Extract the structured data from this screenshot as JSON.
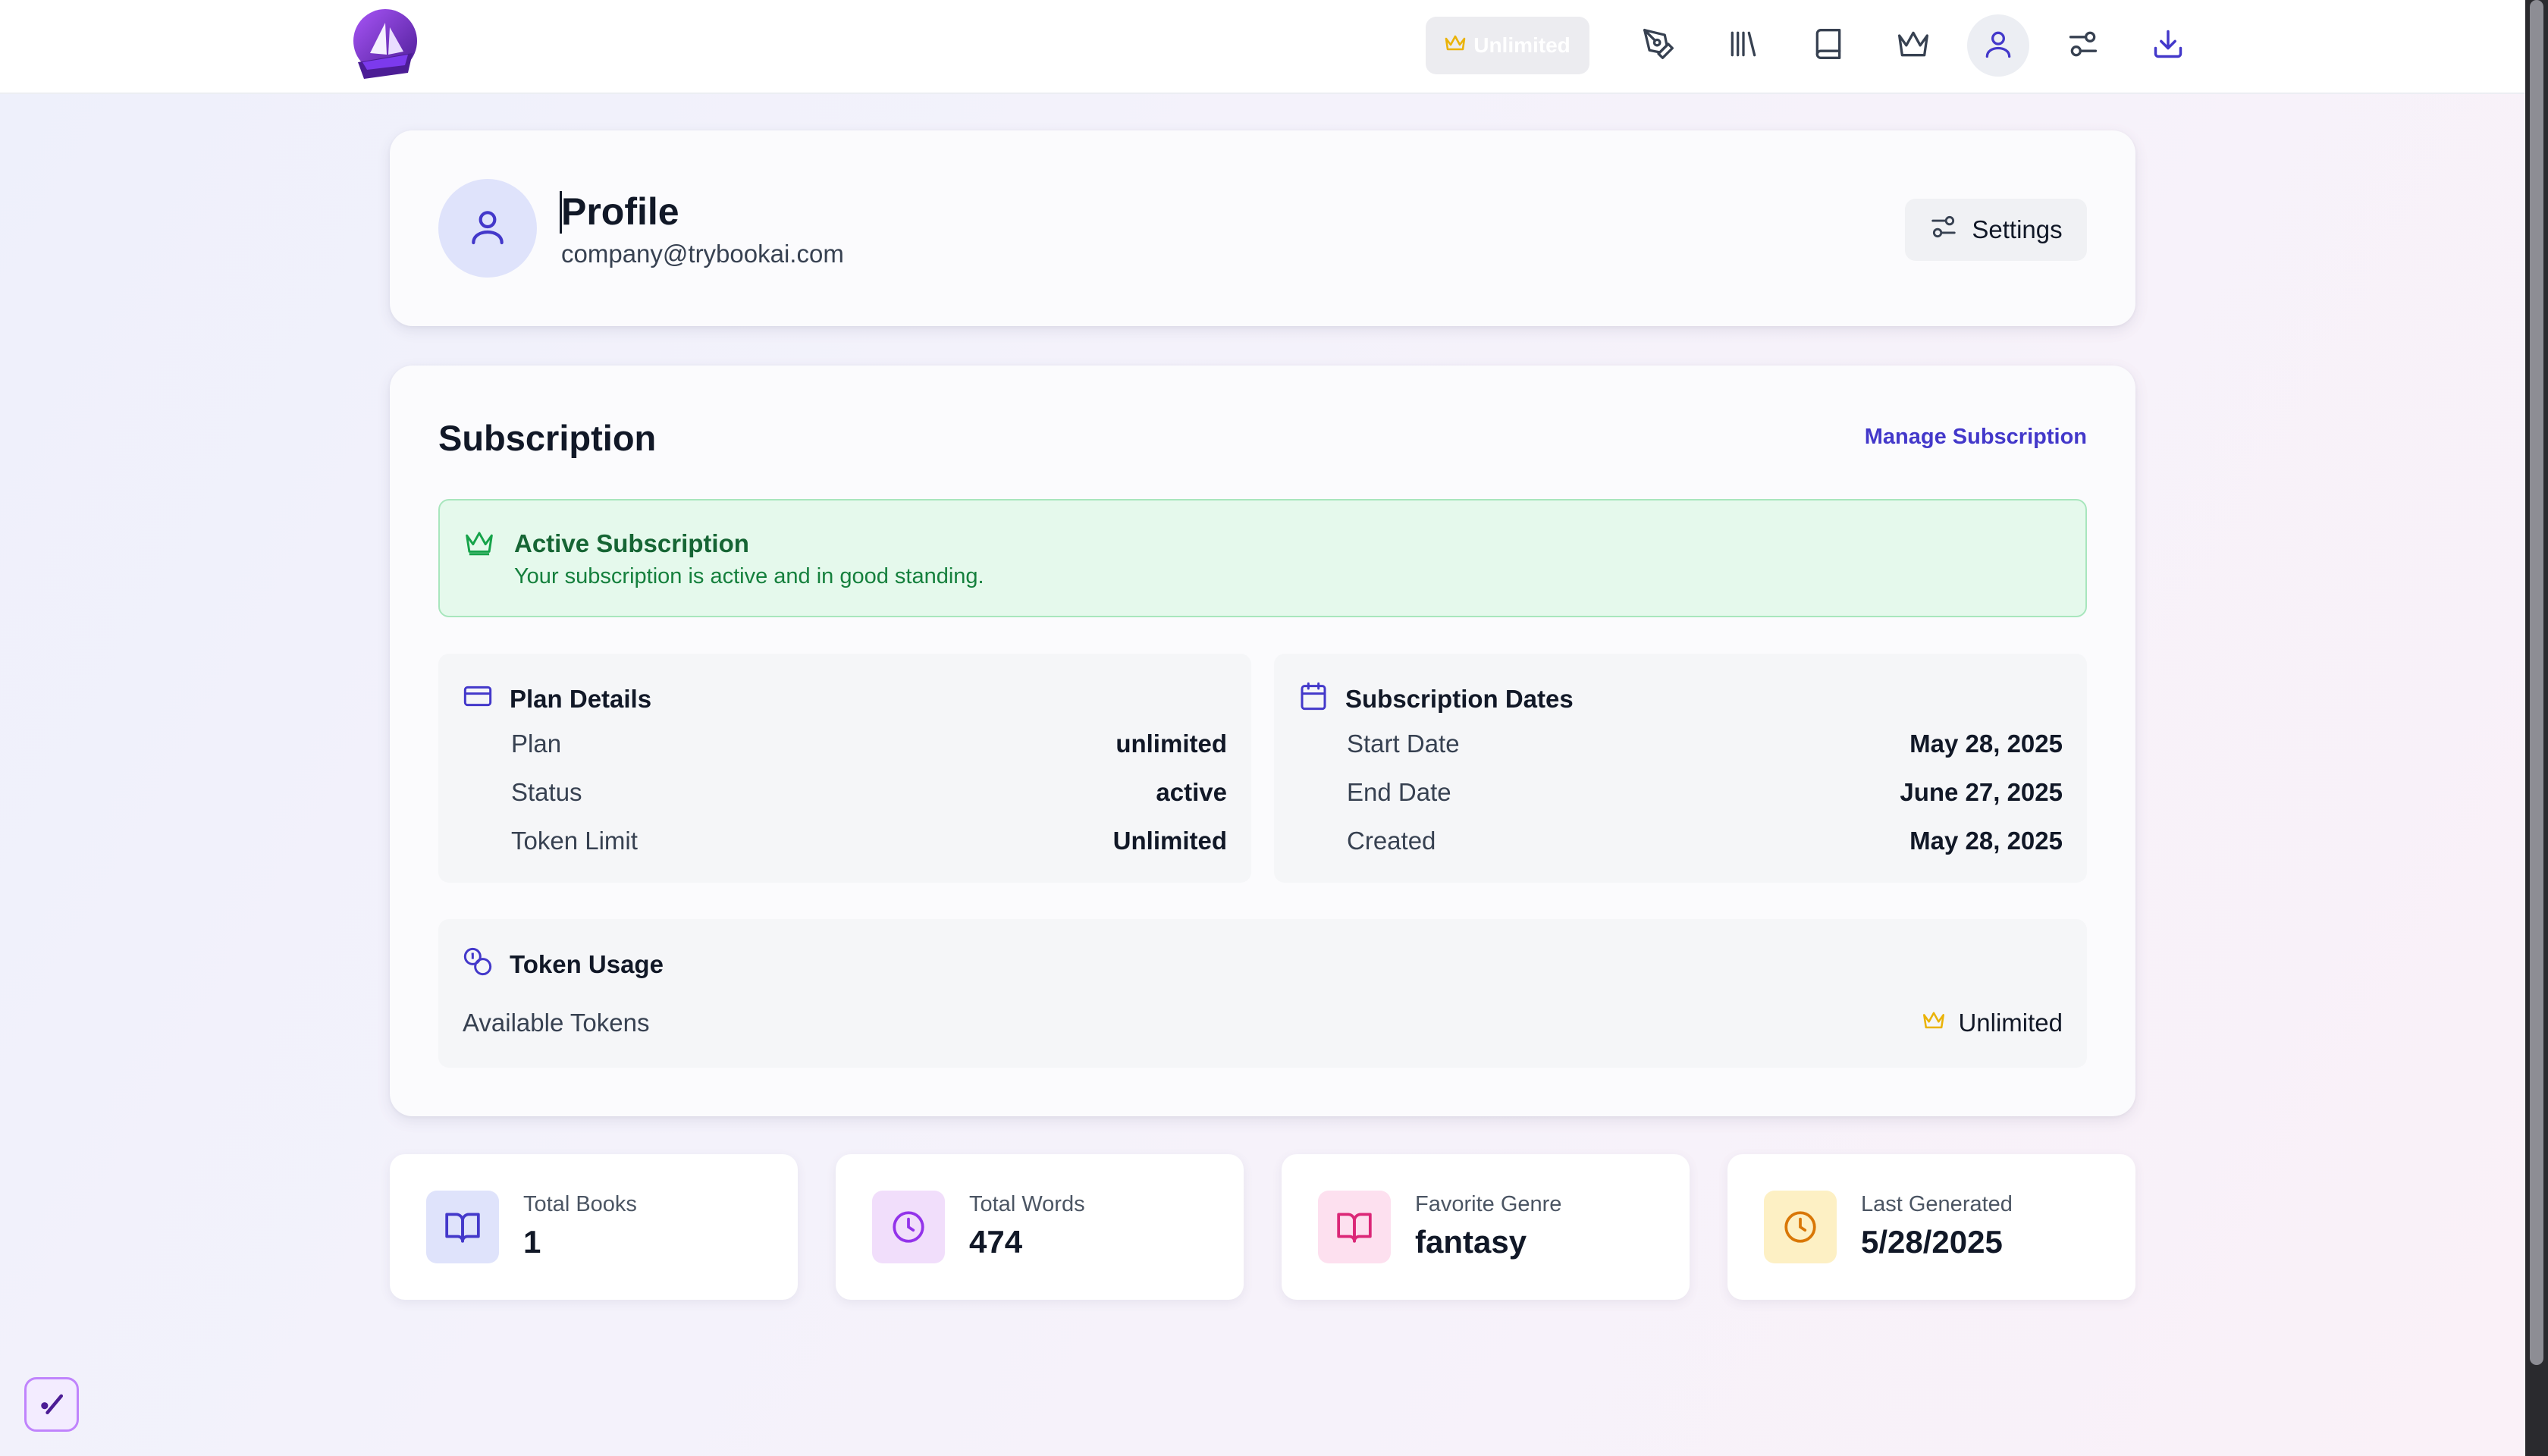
{
  "nav": {
    "badge_label": "Unlimited",
    "items": [
      {
        "name": "write",
        "icon": "pen-nib-icon"
      },
      {
        "name": "library",
        "icon": "library-icon"
      },
      {
        "name": "book",
        "icon": "book-icon"
      },
      {
        "name": "premium",
        "icon": "crown-icon"
      },
      {
        "name": "profile",
        "icon": "user-icon",
        "active": true
      },
      {
        "name": "settings",
        "icon": "sliders-icon"
      },
      {
        "name": "download",
        "icon": "download-icon"
      }
    ]
  },
  "profile": {
    "title": "Profile",
    "email": "company@trybookai.com",
    "settings_label": "Settings"
  },
  "subscription": {
    "title": "Subscription",
    "manage_label": "Manage Subscription",
    "active": {
      "title": "Active Subscription",
      "description": "Your subscription is active and in good standing."
    },
    "plan_details": {
      "title": "Plan Details",
      "rows": [
        {
          "label": "Plan",
          "value": "unlimited"
        },
        {
          "label": "Status",
          "value": "active"
        },
        {
          "label": "Token Limit",
          "value": "Unlimited"
        }
      ]
    },
    "dates": {
      "title": "Subscription Dates",
      "rows": [
        {
          "label": "Start Date",
          "value": "May 28, 2025"
        },
        {
          "label": "End Date",
          "value": "June 27, 2025"
        },
        {
          "label": "Created",
          "value": "May 28, 2025"
        }
      ]
    },
    "token_usage": {
      "title": "Token Usage",
      "label": "Available Tokens",
      "value": "Unlimited"
    }
  },
  "stats": [
    {
      "label": "Total Books",
      "value": "1",
      "icon": "book-open-icon"
    },
    {
      "label": "Total Words",
      "value": "474",
      "icon": "clock-icon"
    },
    {
      "label": "Favorite Genre",
      "value": "fantasy",
      "icon": "book-open-icon"
    },
    {
      "label": "Last Generated",
      "value": "5/28/2025",
      "icon": "clock-icon"
    }
  ],
  "colors": {
    "accent": "#4338ca",
    "gold": "#eab308",
    "success_bg": "#e5f9ec",
    "success_text": "#166534"
  }
}
